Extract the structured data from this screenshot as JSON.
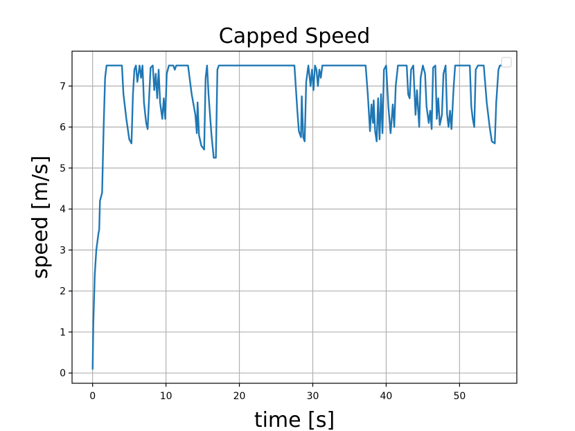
{
  "chart_data": {
    "type": "line",
    "title": "Capped Speed",
    "xlabel": "time [s]",
    "ylabel": "speed [m/s]",
    "xlim": [
      -2.8,
      57.8
    ],
    "ylim": [
      -0.25,
      7.85
    ],
    "x_ticks": [
      0,
      10,
      20,
      30,
      40,
      50
    ],
    "y_ticks": [
      0,
      1,
      2,
      3,
      4,
      5,
      6,
      7
    ],
    "grid": true,
    "legend": "top-right (empty)",
    "series": [
      {
        "color": "#1f77b4",
        "points": [
          [
            0.0,
            0.1
          ],
          [
            0.1,
            1.2
          ],
          [
            0.3,
            2.4
          ],
          [
            0.5,
            3.0
          ],
          [
            0.8,
            3.4
          ],
          [
            0.9,
            3.5
          ],
          [
            1.0,
            4.2
          ],
          [
            1.3,
            4.4
          ],
          [
            1.5,
            6.0
          ],
          [
            1.7,
            7.2
          ],
          [
            1.9,
            7.5
          ],
          [
            3.0,
            7.5
          ],
          [
            4.0,
            7.5
          ],
          [
            4.2,
            6.8
          ],
          [
            4.6,
            6.2
          ],
          [
            5.0,
            5.7
          ],
          [
            5.3,
            5.6
          ],
          [
            5.5,
            6.8
          ],
          [
            5.7,
            7.4
          ],
          [
            5.9,
            7.5
          ],
          [
            6.1,
            7.1
          ],
          [
            6.4,
            7.5
          ],
          [
            6.6,
            7.2
          ],
          [
            6.8,
            7.5
          ],
          [
            7.0,
            6.6
          ],
          [
            7.3,
            6.1
          ],
          [
            7.5,
            5.95
          ],
          [
            7.7,
            6.7
          ],
          [
            7.9,
            7.45
          ],
          [
            8.2,
            7.5
          ],
          [
            8.4,
            6.9
          ],
          [
            8.6,
            7.3
          ],
          [
            8.8,
            6.7
          ],
          [
            9.0,
            7.4
          ],
          [
            9.2,
            6.6
          ],
          [
            9.5,
            6.2
          ],
          [
            9.7,
            6.7
          ],
          [
            9.9,
            6.2
          ],
          [
            10.1,
            7.3
          ],
          [
            10.4,
            7.5
          ],
          [
            11.0,
            7.5
          ],
          [
            11.2,
            7.4
          ],
          [
            11.4,
            7.5
          ],
          [
            13.0,
            7.5
          ],
          [
            13.5,
            6.8
          ],
          [
            14.0,
            6.3
          ],
          [
            14.2,
            5.85
          ],
          [
            14.3,
            6.6
          ],
          [
            14.5,
            5.8
          ],
          [
            14.8,
            5.55
          ],
          [
            15.2,
            5.45
          ],
          [
            15.4,
            7.2
          ],
          [
            15.6,
            7.5
          ],
          [
            15.8,
            6.8
          ],
          [
            16.2,
            5.8
          ],
          [
            16.5,
            5.25
          ],
          [
            16.8,
            5.25
          ],
          [
            17.0,
            7.4
          ],
          [
            17.2,
            7.5
          ],
          [
            20.0,
            7.5
          ],
          [
            25.0,
            7.5
          ],
          [
            27.5,
            7.5
          ],
          [
            27.9,
            6.4
          ],
          [
            28.1,
            5.9
          ],
          [
            28.4,
            5.75
          ],
          [
            28.5,
            6.75
          ],
          [
            28.7,
            5.75
          ],
          [
            28.9,
            5.65
          ],
          [
            29.1,
            7.1
          ],
          [
            29.4,
            7.5
          ],
          [
            29.7,
            7.0
          ],
          [
            29.9,
            7.4
          ],
          [
            30.1,
            6.9
          ],
          [
            30.3,
            7.5
          ],
          [
            30.5,
            7.4
          ],
          [
            30.7,
            7.0
          ],
          [
            30.9,
            7.4
          ],
          [
            31.1,
            7.2
          ],
          [
            31.3,
            7.5
          ],
          [
            35.0,
            7.5
          ],
          [
            37.2,
            7.5
          ],
          [
            37.5,
            6.8
          ],
          [
            37.8,
            5.9
          ],
          [
            38.0,
            6.55
          ],
          [
            38.2,
            6.1
          ],
          [
            38.3,
            6.65
          ],
          [
            38.5,
            5.9
          ],
          [
            38.7,
            5.65
          ],
          [
            38.9,
            6.7
          ],
          [
            39.1,
            5.7
          ],
          [
            39.3,
            6.8
          ],
          [
            39.5,
            5.85
          ],
          [
            39.7,
            7.4
          ],
          [
            40.0,
            7.5
          ],
          [
            40.3,
            6.5
          ],
          [
            40.6,
            5.85
          ],
          [
            40.9,
            6.55
          ],
          [
            41.1,
            6.0
          ],
          [
            41.3,
            7.0
          ],
          [
            41.6,
            7.5
          ],
          [
            42.8,
            7.5
          ],
          [
            43.0,
            6.8
          ],
          [
            43.2,
            6.7
          ],
          [
            43.4,
            7.4
          ],
          [
            43.7,
            7.5
          ],
          [
            44.0,
            6.3
          ],
          [
            44.2,
            6.9
          ],
          [
            44.5,
            6.0
          ],
          [
            44.7,
            7.2
          ],
          [
            45.0,
            7.5
          ],
          [
            45.3,
            7.3
          ],
          [
            45.5,
            6.5
          ],
          [
            45.8,
            6.1
          ],
          [
            46.0,
            6.4
          ],
          [
            46.2,
            5.95
          ],
          [
            46.4,
            7.45
          ],
          [
            46.7,
            7.5
          ],
          [
            46.9,
            6.2
          ],
          [
            47.1,
            6.7
          ],
          [
            47.3,
            6.05
          ],
          [
            47.6,
            6.3
          ],
          [
            47.8,
            7.3
          ],
          [
            48.1,
            7.5
          ],
          [
            48.3,
            6.3
          ],
          [
            48.5,
            6.0
          ],
          [
            48.7,
            6.4
          ],
          [
            48.9,
            5.95
          ],
          [
            49.2,
            7.0
          ],
          [
            49.4,
            7.5
          ],
          [
            51.4,
            7.5
          ],
          [
            51.6,
            6.5
          ],
          [
            51.8,
            6.2
          ],
          [
            52.0,
            6.0
          ],
          [
            52.2,
            7.4
          ],
          [
            52.5,
            7.5
          ],
          [
            53.3,
            7.5
          ],
          [
            53.7,
            6.6
          ],
          [
            54.1,
            6.0
          ],
          [
            54.4,
            5.65
          ],
          [
            54.8,
            5.6
          ],
          [
            55.0,
            6.6
          ],
          [
            55.3,
            7.4
          ],
          [
            55.5,
            7.5
          ],
          [
            55.7,
            7.5
          ]
        ]
      }
    ]
  }
}
